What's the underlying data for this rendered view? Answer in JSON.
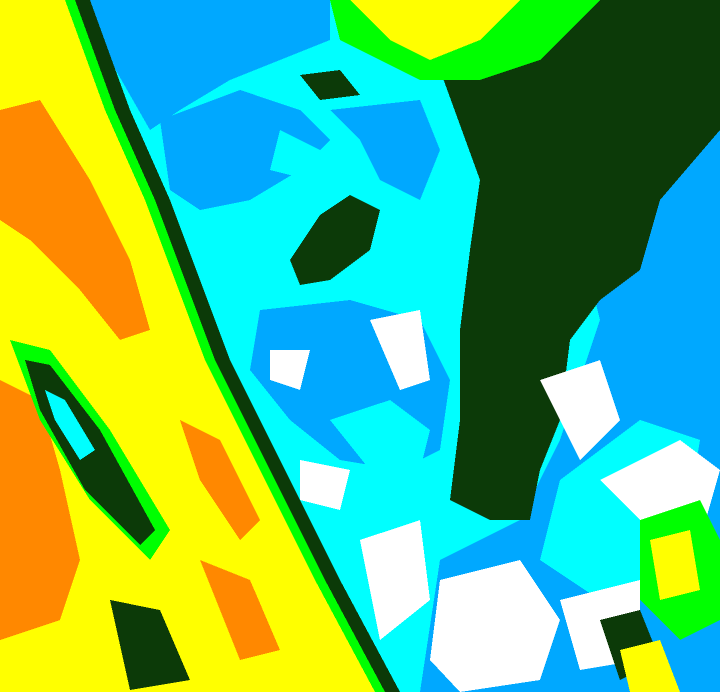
{
  "image": {
    "kind": "false-color classified raster",
    "palette": {
      "orange": "#ff8800",
      "yellow": "#ffff00",
      "green": "#00ff00",
      "dark_green": "#0c3a08",
      "cyan": "#00ffff",
      "blue": "#00a8ff",
      "white": "#ffffff"
    }
  }
}
